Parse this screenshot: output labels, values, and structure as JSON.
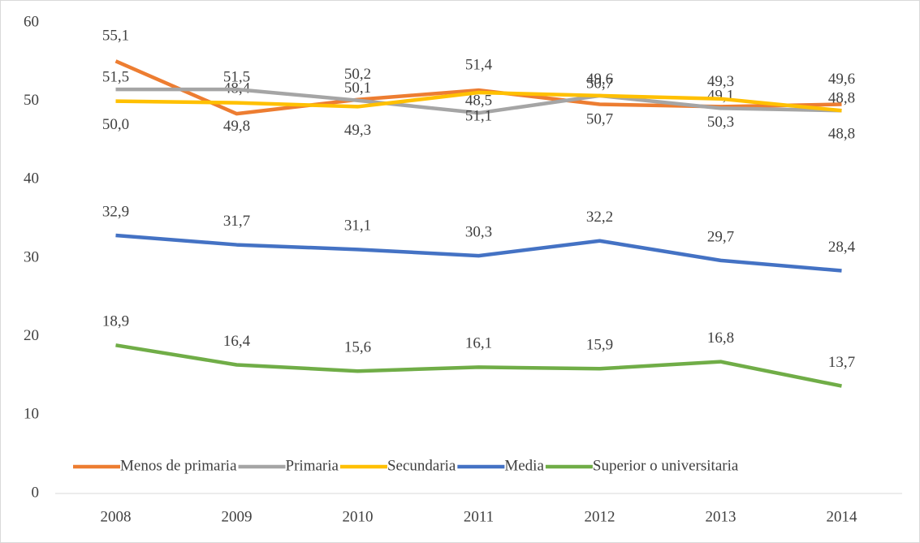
{
  "chart_data": {
    "type": "line",
    "categories": [
      "2008",
      "2009",
      "2010",
      "2011",
      "2012",
      "2013",
      "2014"
    ],
    "series": [
      {
        "name": "Menos de primaria",
        "color": "#ED7D31",
        "values": [
          55.1,
          48.4,
          50.2,
          51.4,
          49.6,
          49.3,
          49.6
        ],
        "value_labels": [
          "55,1",
          "48,4",
          "50,2",
          "51,4",
          "49,6",
          "49,3",
          "49,6"
        ]
      },
      {
        "name": "Primaria",
        "color": "#A5A5A5",
        "values": [
          51.5,
          51.5,
          50.1,
          48.5,
          50.7,
          49.1,
          48.8
        ],
        "value_labels": [
          "51,5",
          "51,5",
          "50,1",
          "48,5",
          "50,7",
          "49,1",
          "48,8"
        ]
      },
      {
        "name": "Secundaria",
        "color": "#FFC000",
        "values": [
          50.0,
          49.8,
          49.3,
          51.1,
          50.7,
          50.3,
          48.8
        ],
        "value_labels": [
          "50,0",
          "49,8",
          "49,3",
          "51,1",
          "50,7",
          "50,3",
          "48,8"
        ]
      },
      {
        "name": "Media",
        "color": "#4472C4",
        "values": [
          32.9,
          31.7,
          31.1,
          30.3,
          32.2,
          29.7,
          28.4
        ],
        "value_labels": [
          "32,9",
          "31,7",
          "31,1",
          "30,3",
          "32,2",
          "29,7",
          "28,4"
        ]
      },
      {
        "name": "Superior o universitaria",
        "color": "#70AD47",
        "values": [
          18.9,
          16.4,
          15.6,
          16.1,
          15.9,
          16.8,
          13.7
        ],
        "value_labels": [
          "18,9",
          "16,4",
          "15,6",
          "16,1",
          "15,9",
          "16,8",
          "13,7"
        ]
      }
    ],
    "ylim": [
      0,
      60
    ],
    "yticks": [
      0,
      10,
      20,
      30,
      40,
      50,
      60
    ],
    "grid": false,
    "legend": "bottom"
  }
}
